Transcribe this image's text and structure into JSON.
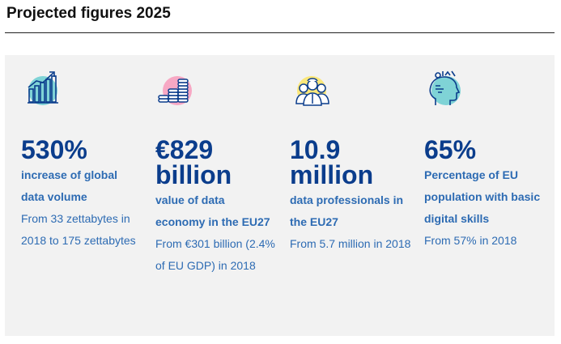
{
  "heading": "Projected figures 2025",
  "cards": [
    {
      "icon": "growth-chart-icon",
      "circle_color": "#7fd3d6",
      "big": "530%",
      "desc": "increase of global data volume",
      "note": "From 33 zettabytes in 2018 to 175 zettabytes"
    },
    {
      "icon": "coin-stacks-icon",
      "circle_color": "#f7a8c4",
      "big": "€829 billion",
      "desc": "value of data economy in the EU27",
      "note": "From €301 billion (2.4% of EU GDP) in 2018"
    },
    {
      "icon": "people-group-icon",
      "circle_color": "#fbe77a",
      "big": "10.9 million",
      "desc": "data professionals in the EU27",
      "note": "From 5.7 million in 2018"
    },
    {
      "icon": "head-skills-icon",
      "circle_color": "#7fd3d6",
      "big": "65%",
      "desc": "Percentage of EU population with basic digital skills",
      "note": "From 57% in 2018"
    }
  ]
}
